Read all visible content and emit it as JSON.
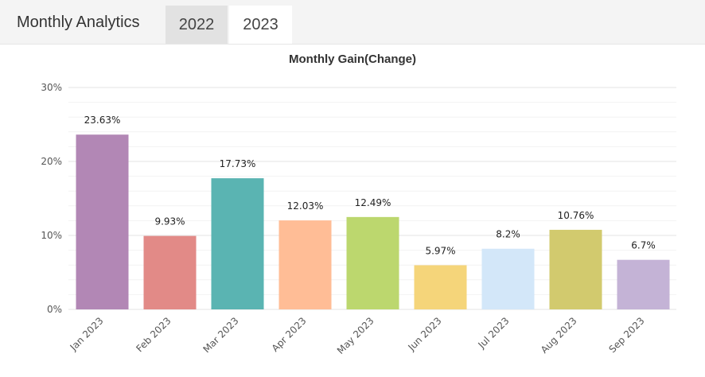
{
  "header": {
    "title": "Monthly Analytics",
    "tabs": [
      {
        "label": "2022",
        "active": false
      },
      {
        "label": "2023",
        "active": true
      }
    ]
  },
  "chart_data": {
    "type": "bar",
    "title": "Monthly Gain(Change)",
    "xlabel": "",
    "ylabel": "",
    "ylim": [
      0,
      30
    ],
    "y_ticks": [
      "0%",
      "10%",
      "20%",
      "30%"
    ],
    "grid": true,
    "categories": [
      "Jan 2023",
      "Feb 2023",
      "Mar 2023",
      "Apr 2023",
      "May 2023",
      "Jun 2023",
      "Jul 2023",
      "Aug 2023",
      "Sep 2023"
    ],
    "values": [
      23.63,
      9.93,
      17.73,
      12.03,
      12.49,
      5.97,
      8.2,
      10.76,
      6.7
    ],
    "value_labels": [
      "23.63%",
      "9.93%",
      "17.73%",
      "12.03%",
      "12.49%",
      "5.97%",
      "8.2%",
      "10.76%",
      "6.7%"
    ],
    "colors": [
      "#b287b5",
      "#e28a87",
      "#5ab4b2",
      "#ffbd96",
      "#bcd76e",
      "#f5d57a",
      "#d3e7f9",
      "#d2ca6e",
      "#c4b3d6"
    ]
  }
}
